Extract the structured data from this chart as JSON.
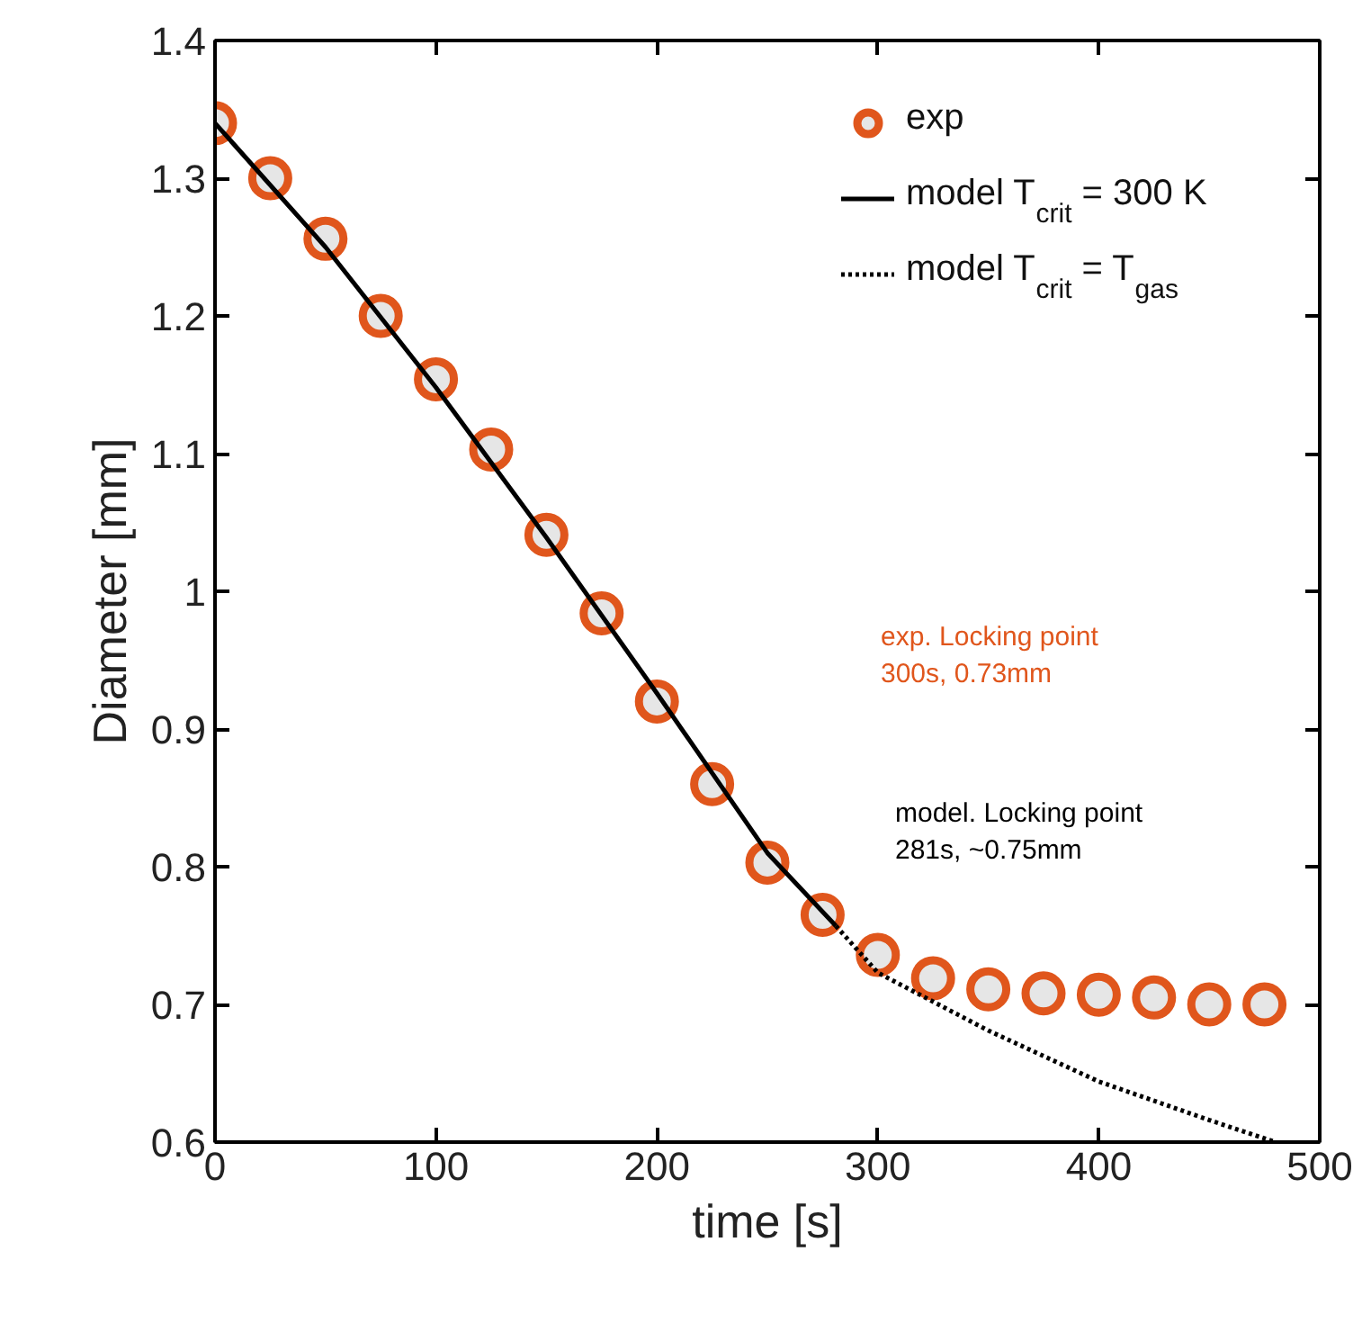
{
  "chart_data": {
    "type": "scatter",
    "xlabel": "time [s]",
    "ylabel": "Diameter [mm]",
    "xlim": [
      0,
      500
    ],
    "ylim": [
      0.6,
      1.4
    ],
    "xticks": [
      0,
      100,
      200,
      300,
      400,
      500
    ],
    "yticks": [
      0.6,
      0.7,
      0.8,
      0.9,
      1,
      1.1,
      1.2,
      1.3,
      1.4
    ],
    "grid": false,
    "legend": "top right",
    "series": [
      {
        "name": "exp",
        "marker": "circle",
        "color": "#e0561c",
        "x": [
          0,
          25,
          50,
          75,
          100,
          125,
          150,
          175,
          200,
          225,
          250,
          275,
          300,
          325,
          350,
          375,
          400,
          425,
          450,
          475
        ],
        "values": [
          1.34,
          1.3,
          1.256,
          1.2,
          1.154,
          1.103,
          1.041,
          0.984,
          0.92,
          0.86,
          0.803,
          0.765,
          0.736,
          0.719,
          0.711,
          0.708,
          0.707,
          0.705,
          0.7,
          0.7
        ]
      },
      {
        "name": "model T$_{crit}$ = 300 K",
        "type": "line",
        "line_style": "solid",
        "color": "#000000",
        "x": [
          0,
          50,
          100,
          150,
          200,
          250,
          281
        ],
        "values": [
          1.34,
          1.25,
          1.148,
          1.039,
          0.926,
          0.81,
          0.757
        ]
      },
      {
        "name": "model T$_{crit}$ = T$_{gas}$",
        "type": "line",
        "line_style": "dotted",
        "color": "#000000",
        "x": [
          281,
          300,
          350,
          400,
          450,
          480
        ],
        "values": [
          0.757,
          0.723,
          0.681,
          0.644,
          0.616,
          0.6
        ]
      }
    ],
    "annotations": [
      "exp. Locking point\n300s, 0.73mm",
      "model. Locking point\n281s, ~0.75mm"
    ]
  }
}
